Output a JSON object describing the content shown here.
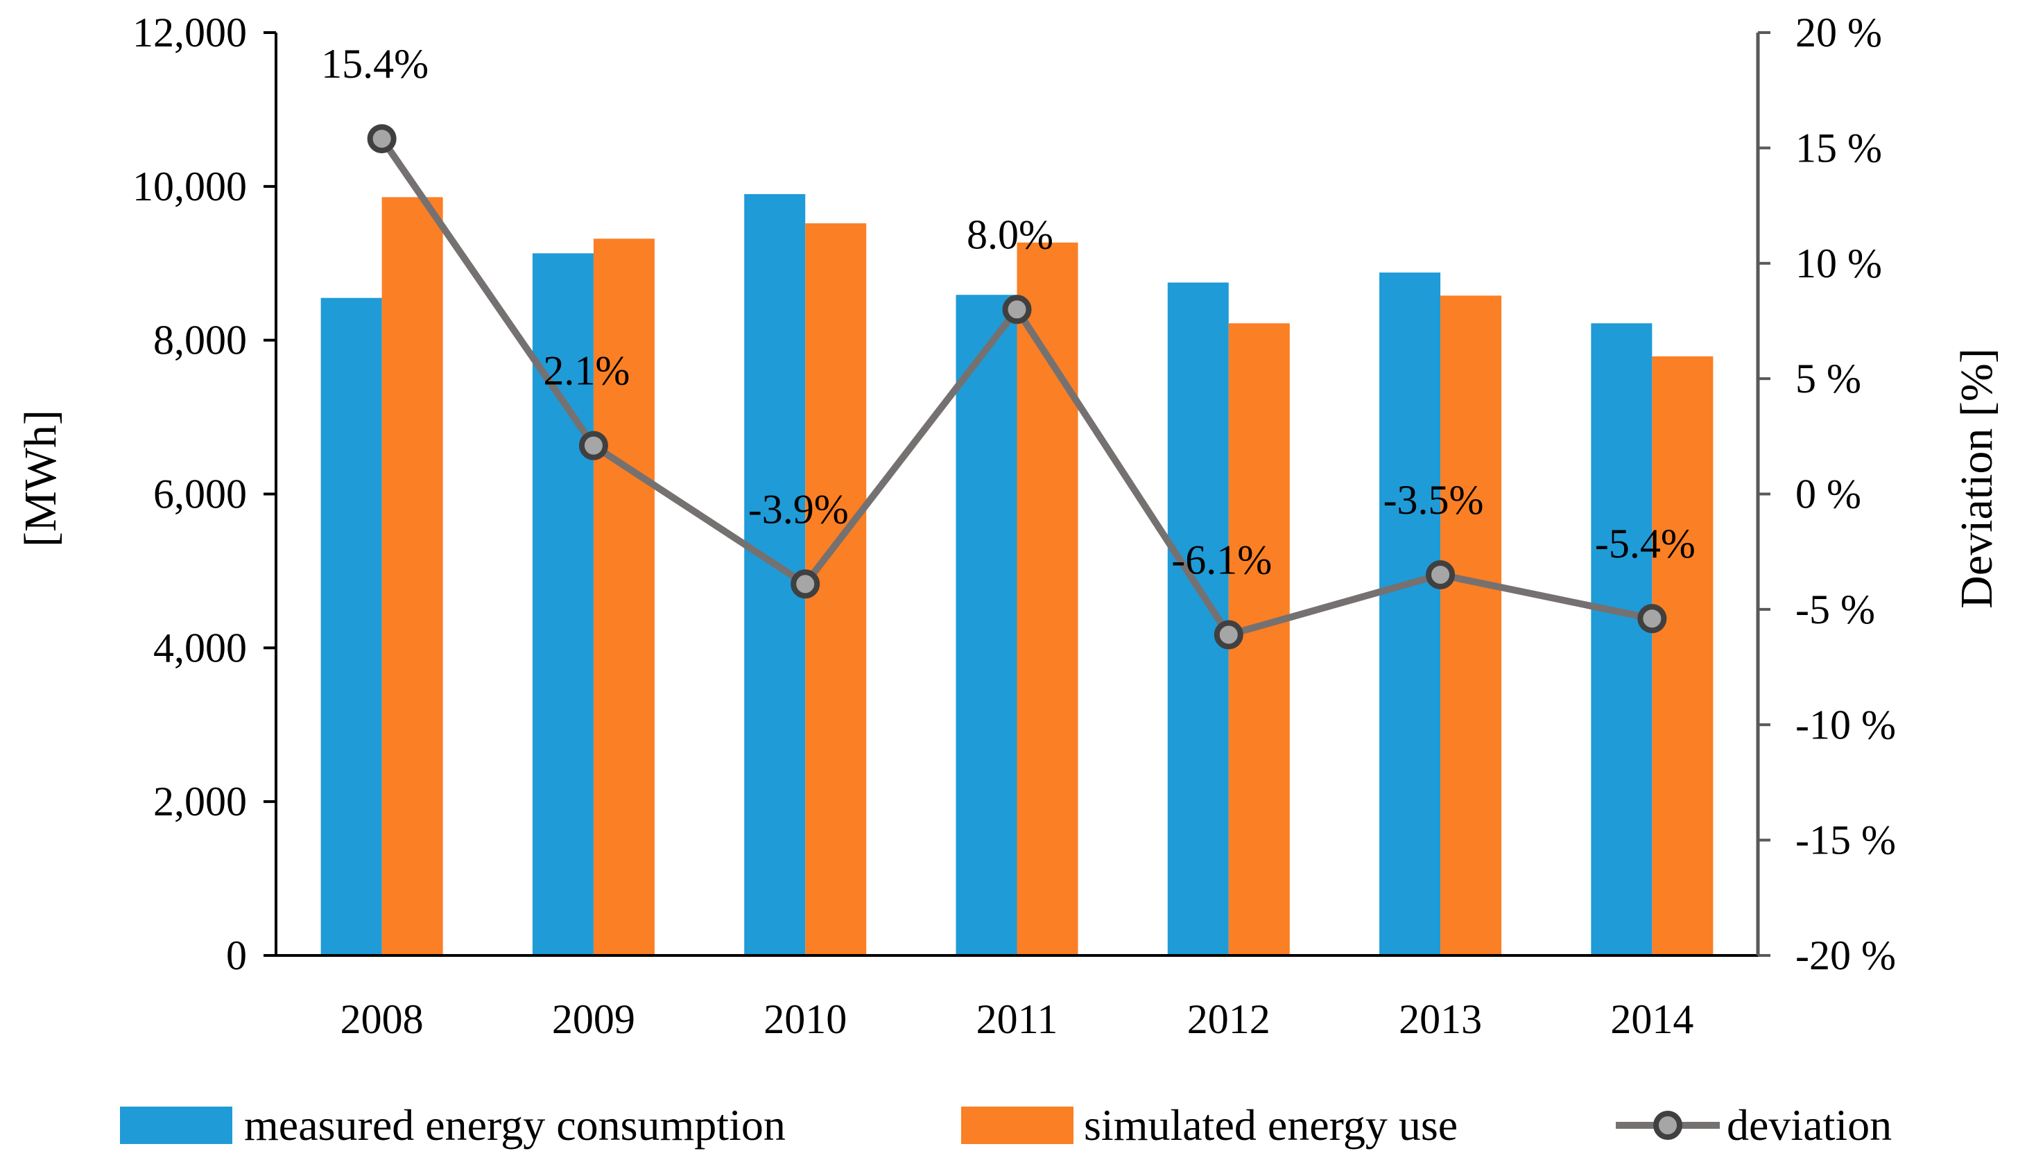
{
  "chart_data": {
    "type": "bar",
    "categories": [
      "2008",
      "2009",
      "2010",
      "2011",
      "2012",
      "2013",
      "2014"
    ],
    "series": [
      {
        "name": "measured energy consumption",
        "type": "bar",
        "axis": "left",
        "color": "#1f9bd7",
        "values": [
          8550,
          9130,
          9900,
          8590,
          8750,
          8880,
          8220
        ]
      },
      {
        "name": "simulated energy use",
        "type": "bar",
        "axis": "left",
        "color": "#fb7f24",
        "values": [
          9860,
          9320,
          9520,
          9270,
          8220,
          8580,
          7790
        ]
      },
      {
        "name": "deviation",
        "type": "line",
        "axis": "right",
        "color": "#757171",
        "marker_fill": "#a6a6a6",
        "values": [
          15.4,
          2.1,
          -3.9,
          8.0,
          -6.1,
          -3.5,
          -5.4
        ],
        "labels": [
          "15.4%",
          "2.1%",
          "-3.9%",
          "8.0%",
          "-6.1%",
          "-3.5%",
          "-5.4%"
        ]
      }
    ],
    "ylabel": "[MWh]",
    "y2label": "Deviation [%]",
    "ylim": [
      0,
      12000
    ],
    "y2lim": [
      -20,
      20
    ],
    "yticks": [
      "0",
      "2,000",
      "4,000",
      "6,000",
      "8,000",
      "10,000",
      "12,000"
    ],
    "y2ticks": [
      "-20 %",
      "-15 %",
      "-10 %",
      "-5 %",
      "0 %",
      "5 %",
      "10 %",
      "15 %",
      "20 %"
    ],
    "grid": false,
    "legend": [
      "measured energy consumption",
      "simulated energy use",
      "deviation"
    ],
    "legend_position": "bottom"
  }
}
